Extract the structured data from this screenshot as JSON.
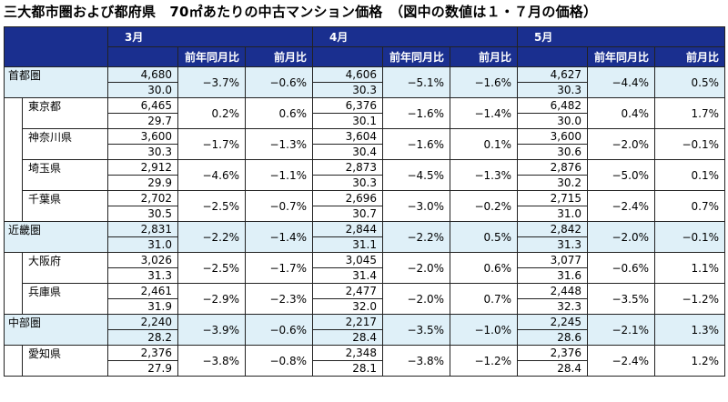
{
  "title": "三大都市圏および都府県　70㎡あたりの中古マンション価格　（図中の数値は１・７月の価格）",
  "months": [
    "3月",
    "4月",
    "5月"
  ],
  "sub_headers": [
    "前年同月比",
    "前月比"
  ],
  "rows": [
    {
      "name": "首都圏",
      "type": "region",
      "data": [
        {
          "price": "4,680",
          "area": "30.0",
          "yoy": "−3.7%",
          "mom": "−0.6%"
        },
        {
          "price": "4,606",
          "area": "30.3",
          "yoy": "−5.1%",
          "mom": "−1.6%"
        },
        {
          "price": "4,627",
          "area": "30.3",
          "yoy": "−4.4%",
          "mom": "0.5%"
        }
      ]
    },
    {
      "name": "東京都",
      "type": "pref",
      "data": [
        {
          "price": "6,465",
          "area": "29.7",
          "yoy": "0.2%",
          "mom": "0.6%"
        },
        {
          "price": "6,376",
          "area": "30.1",
          "yoy": "−1.6%",
          "mom": "−1.4%"
        },
        {
          "price": "6,482",
          "area": "30.0",
          "yoy": "0.4%",
          "mom": "1.7%"
        }
      ]
    },
    {
      "name": "神奈川県",
      "type": "pref",
      "data": [
        {
          "price": "3,600",
          "area": "30.3",
          "yoy": "−1.7%",
          "mom": "−1.3%"
        },
        {
          "price": "3,604",
          "area": "30.4",
          "yoy": "−1.6%",
          "mom": "0.1%"
        },
        {
          "price": "3,600",
          "area": "30.6",
          "yoy": "−2.0%",
          "mom": "−0.1%"
        }
      ]
    },
    {
      "name": "埼玉県",
      "type": "pref",
      "data": [
        {
          "price": "2,912",
          "area": "29.9",
          "yoy": "−4.6%",
          "mom": "−1.1%"
        },
        {
          "price": "2,873",
          "area": "30.3",
          "yoy": "−4.5%",
          "mom": "−1.3%"
        },
        {
          "price": "2,876",
          "area": "30.2",
          "yoy": "−5.0%",
          "mom": "0.1%"
        }
      ]
    },
    {
      "name": "千葉県",
      "type": "pref",
      "data": [
        {
          "price": "2,702",
          "area": "30.5",
          "yoy": "−2.5%",
          "mom": "−0.7%"
        },
        {
          "price": "2,696",
          "area": "30.7",
          "yoy": "−3.0%",
          "mom": "−0.2%"
        },
        {
          "price": "2,715",
          "area": "31.0",
          "yoy": "−2.4%",
          "mom": "0.7%"
        }
      ]
    },
    {
      "name": "近畿圏",
      "type": "region",
      "data": [
        {
          "price": "2,831",
          "area": "31.0",
          "yoy": "−2.2%",
          "mom": "−1.4%"
        },
        {
          "price": "2,844",
          "area": "31.1",
          "yoy": "−2.2%",
          "mom": "0.5%"
        },
        {
          "price": "2,842",
          "area": "31.3",
          "yoy": "−2.0%",
          "mom": "−0.1%"
        }
      ]
    },
    {
      "name": "大阪府",
      "type": "pref",
      "data": [
        {
          "price": "3,026",
          "area": "31.3",
          "yoy": "−2.5%",
          "mom": "−1.7%"
        },
        {
          "price": "3,045",
          "area": "31.4",
          "yoy": "−2.0%",
          "mom": "0.6%"
        },
        {
          "price": "3,077",
          "area": "31.6",
          "yoy": "−0.6%",
          "mom": "1.1%"
        }
      ]
    },
    {
      "name": "兵庫県",
      "type": "pref",
      "data": [
        {
          "price": "2,461",
          "area": "31.9",
          "yoy": "−2.9%",
          "mom": "−2.3%"
        },
        {
          "price": "2,477",
          "area": "32.0",
          "yoy": "−2.0%",
          "mom": "0.7%"
        },
        {
          "price": "2,448",
          "area": "32.3",
          "yoy": "−3.5%",
          "mom": "−1.2%"
        }
      ]
    },
    {
      "name": "中部圏",
      "type": "region",
      "data": [
        {
          "price": "2,240",
          "area": "28.2",
          "yoy": "−3.9%",
          "mom": "−0.6%"
        },
        {
          "price": "2,217",
          "area": "28.4",
          "yoy": "−3.5%",
          "mom": "−1.0%"
        },
        {
          "price": "2,245",
          "area": "28.6",
          "yoy": "−2.1%",
          "mom": "1.3%"
        }
      ]
    },
    {
      "name": "愛知県",
      "type": "pref",
      "data": [
        {
          "price": "2,376",
          "area": "27.9",
          "yoy": "−3.8%",
          "mom": "−0.8%"
        },
        {
          "price": "2,348",
          "area": "28.1",
          "yoy": "−3.8%",
          "mom": "−1.2%"
        },
        {
          "price": "2,376",
          "area": "28.4",
          "yoy": "−2.4%",
          "mom": "1.2%"
        }
      ]
    }
  ]
}
